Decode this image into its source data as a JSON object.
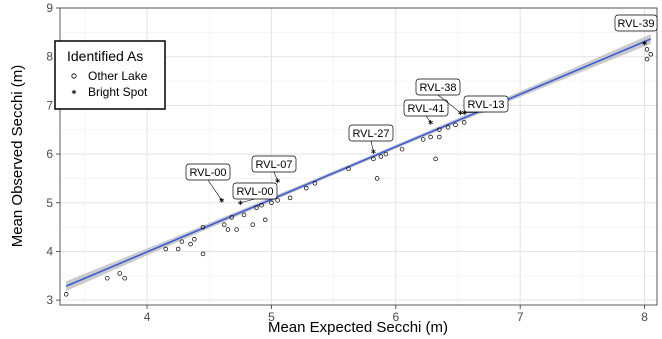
{
  "chart_data": {
    "type": "scatter",
    "xlabel": "Mean Expected Secchi (m)",
    "ylabel": "Mean Observed Secchi (m)",
    "xlim": [
      3.3,
      8.1
    ],
    "ylim": [
      2.9,
      9.0
    ],
    "x_ticks": [
      4,
      5,
      6,
      7,
      8
    ],
    "y_ticks": [
      3,
      4,
      5,
      6,
      7,
      8,
      9
    ],
    "grid": true,
    "legend": {
      "title": "Identified As",
      "placement": "top-left",
      "entries": [
        {
          "label": "Other Lake",
          "marker": "open-circle"
        },
        {
          "label": "Bright Spot",
          "marker": "asterisk"
        }
      ]
    },
    "fit": {
      "type": "linear",
      "intercept": -0.33,
      "slope": 1.08,
      "x_range": [
        3.35,
        8.05
      ],
      "line_color": "#3b5bdb",
      "band_color": "#bdbdbd",
      "band_halfwidth_ends": 0.1,
      "band_halfwidth_mid": 0.04
    },
    "series": [
      {
        "name": "Other Lake",
        "marker": "open-circle",
        "points": [
          [
            3.35,
            3.12
          ],
          [
            3.68,
            3.45
          ],
          [
            3.78,
            3.55
          ],
          [
            3.82,
            3.45
          ],
          [
            4.15,
            4.05
          ],
          [
            4.25,
            4.05
          ],
          [
            4.28,
            4.2
          ],
          [
            4.35,
            4.15
          ],
          [
            4.38,
            4.25
          ],
          [
            4.45,
            3.95
          ],
          [
            4.45,
            4.5
          ],
          [
            4.62,
            4.55
          ],
          [
            4.65,
            4.45
          ],
          [
            4.68,
            4.7
          ],
          [
            4.72,
            4.45
          ],
          [
            4.78,
            4.75
          ],
          [
            4.85,
            4.55
          ],
          [
            4.88,
            4.9
          ],
          [
            4.92,
            4.95
          ],
          [
            4.95,
            4.65
          ],
          [
            5.0,
            5.0
          ],
          [
            5.05,
            5.05
          ],
          [
            5.15,
            5.1
          ],
          [
            5.28,
            5.3
          ],
          [
            5.35,
            5.4
          ],
          [
            5.62,
            5.7
          ],
          [
            5.82,
            5.9
          ],
          [
            5.85,
            5.5
          ],
          [
            5.88,
            5.95
          ],
          [
            5.92,
            6.0
          ],
          [
            6.05,
            6.1
          ],
          [
            6.22,
            6.3
          ],
          [
            6.28,
            6.35
          ],
          [
            6.32,
            5.9
          ],
          [
            6.35,
            6.5
          ],
          [
            6.35,
            6.35
          ],
          [
            6.42,
            6.55
          ],
          [
            6.48,
            6.6
          ],
          [
            6.55,
            6.65
          ],
          [
            8.02,
            8.15
          ],
          [
            8.02,
            7.95
          ],
          [
            8.05,
            8.05
          ]
        ]
      },
      {
        "name": "Bright Spot",
        "marker": "asterisk",
        "points": [
          {
            "x": 4.6,
            "y": 5.05,
            "label": "RVL-00"
          },
          {
            "x": 4.75,
            "y": 5.0,
            "label": "RVL-00"
          },
          {
            "x": 5.05,
            "y": 5.45,
            "label": "RVL-07"
          },
          {
            "x": 5.82,
            "y": 6.05,
            "label": "RVL-27"
          },
          {
            "x": 6.28,
            "y": 6.65,
            "label": "RVL-41"
          },
          {
            "x": 6.52,
            "y": 6.85,
            "label": "RVL-38"
          },
          {
            "x": 6.55,
            "y": 6.85,
            "label": "RVL-13"
          },
          {
            "x": 8.0,
            "y": 8.28,
            "label": "RVL-39"
          }
        ]
      }
    ]
  }
}
